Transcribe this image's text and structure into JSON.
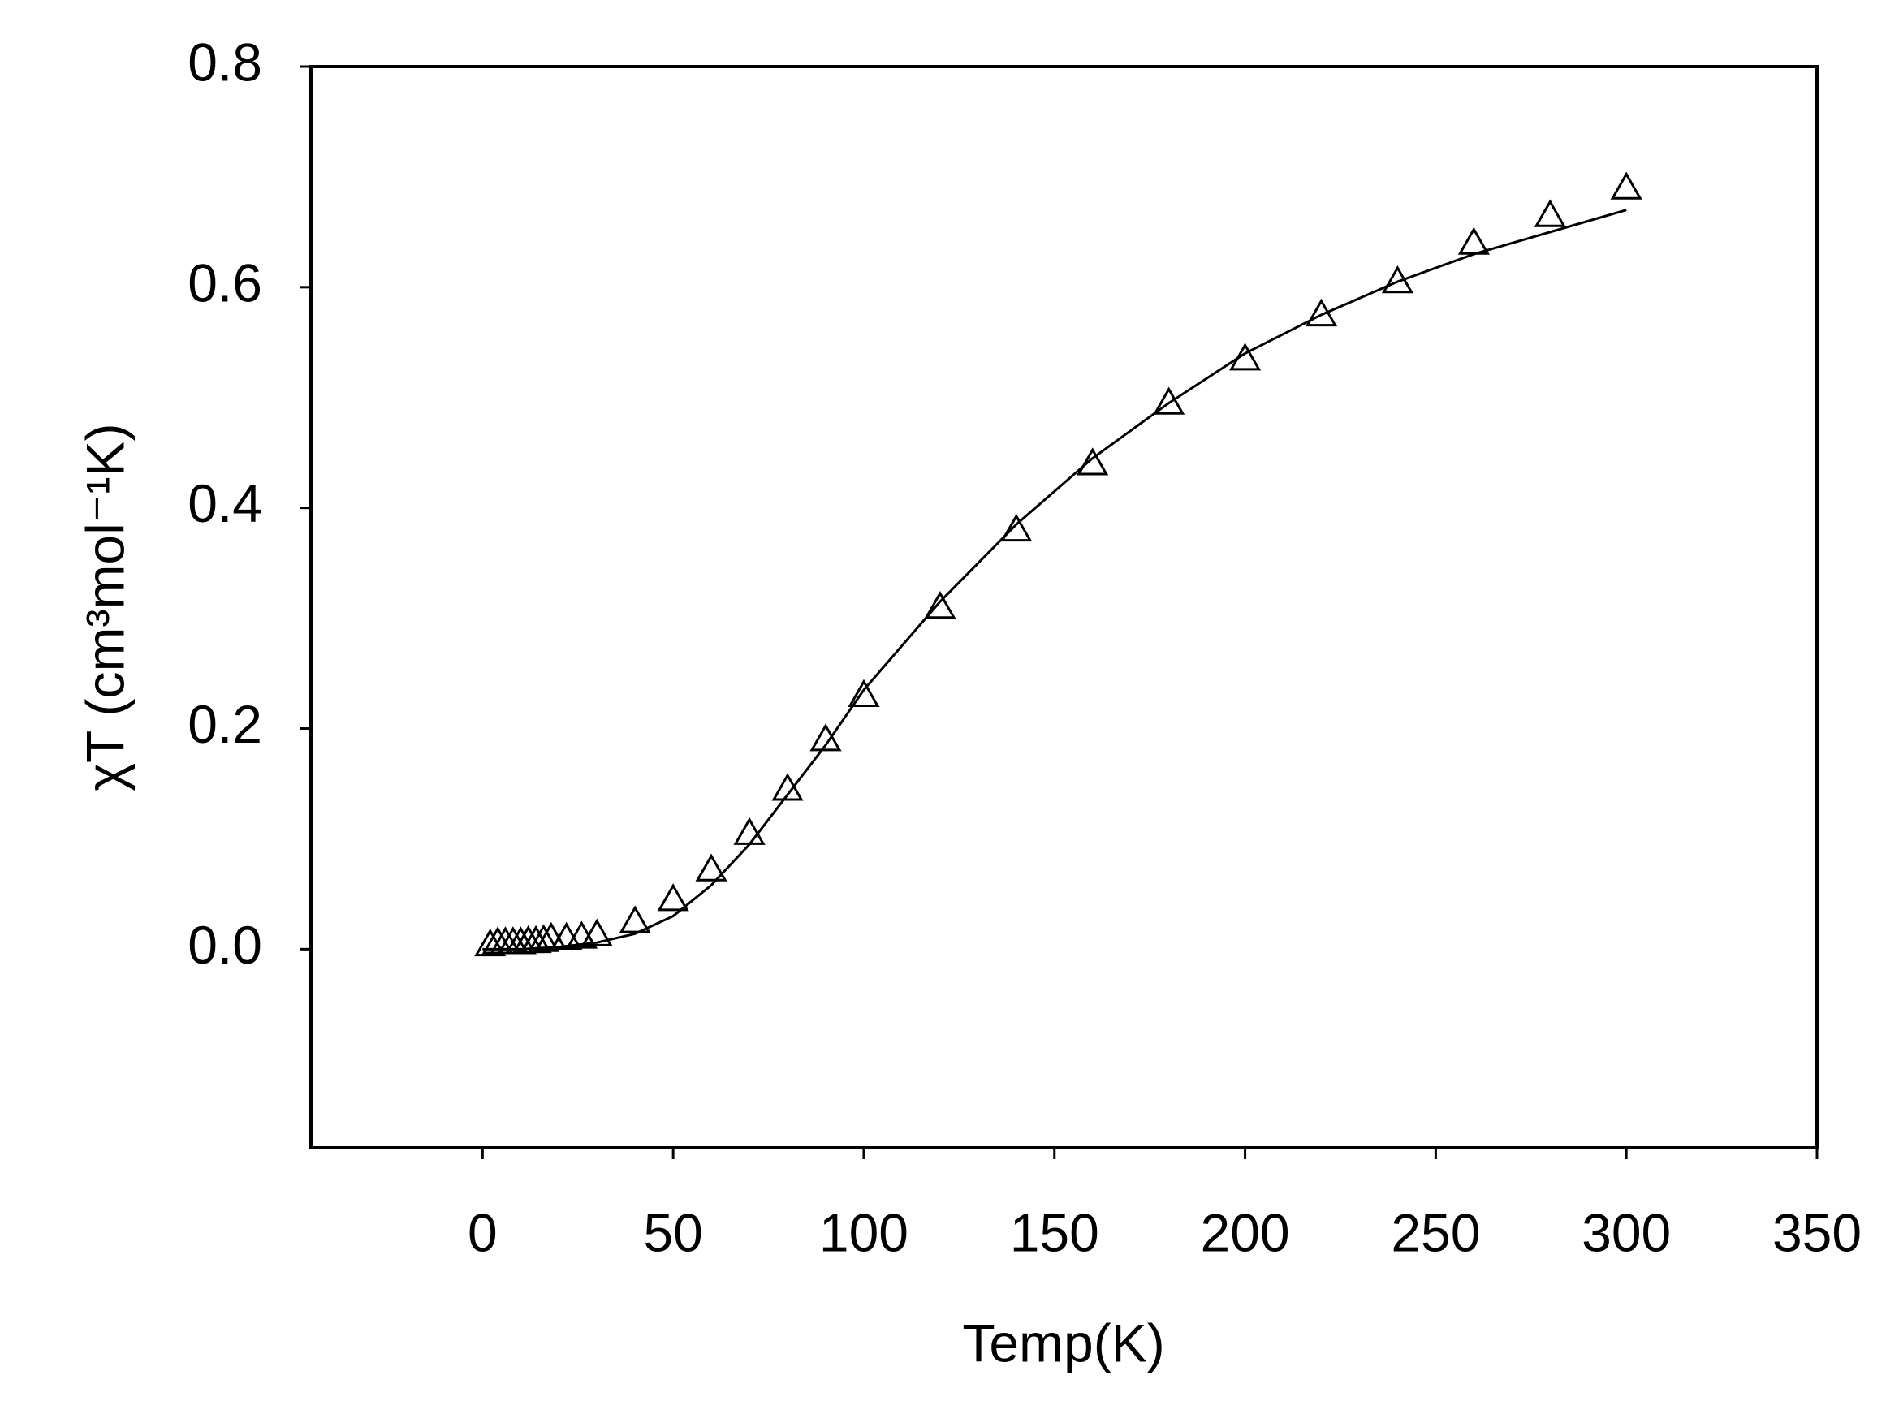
{
  "chart_data": {
    "type": "scatter",
    "x_label": "Temp(K)",
    "y_label": "χT (cm³mol⁻¹K)",
    "xlim": [
      -45,
      350
    ],
    "xticks": [
      0,
      50,
      100,
      150,
      200,
      250,
      300,
      350
    ],
    "ylim": [
      -0.18,
      0.8
    ],
    "yticks": [
      {
        "value": 0,
        "label": "0.0"
      },
      0.2,
      0.4,
      0.6,
      0.8
    ],
    "series": [
      {
        "type": "scatter",
        "marker": "open-triangle",
        "color": "#000000",
        "x": [
          2,
          4,
          6,
          8,
          10,
          12,
          14,
          16,
          18,
          22,
          26,
          30,
          40,
          50,
          60,
          70,
          80,
          90,
          100,
          120,
          140,
          160,
          180,
          200,
          220,
          240,
          260,
          280,
          300
        ],
        "values": [
          0.004,
          0.006,
          0.006,
          0.006,
          0.006,
          0.007,
          0.007,
          0.008,
          0.01,
          0.01,
          0.011,
          0.013,
          0.025,
          0.045,
          0.072,
          0.105,
          0.145,
          0.19,
          0.23,
          0.31,
          0.38,
          0.44,
          0.495,
          0.535,
          0.575,
          0.605,
          0.64,
          0.665,
          0.69
        ]
      },
      {
        "type": "line",
        "color": "#000000",
        "x": [
          0,
          10,
          20,
          30,
          40,
          50,
          60,
          70,
          80,
          90,
          100,
          120,
          140,
          160,
          180,
          200,
          220,
          240,
          260,
          280,
          300
        ],
        "values": [
          0,
          0,
          0.002,
          0.006,
          0.014,
          0.03,
          0.058,
          0.095,
          0.14,
          0.185,
          0.235,
          0.315,
          0.385,
          0.445,
          0.495,
          0.54,
          0.575,
          0.605,
          0.63,
          0.65,
          0.67
        ]
      }
    ]
  }
}
